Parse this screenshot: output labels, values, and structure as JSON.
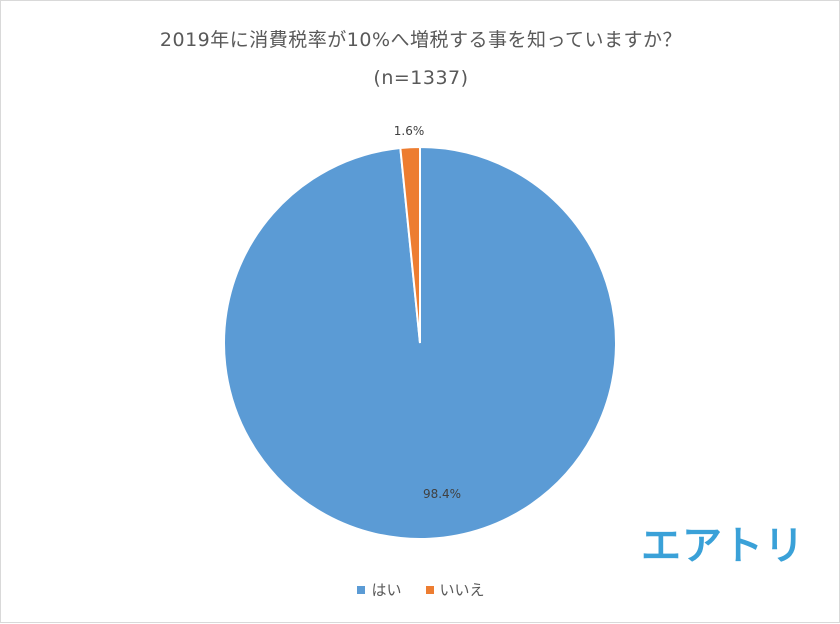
{
  "chart_data": {
    "type": "pie",
    "title": "2019年に消費税率が10%へ増税する事を知っていますか？",
    "subtitle": "(n=1337)",
    "categories": [
      "はい",
      "いいえ"
    ],
    "values": [
      98.4,
      1.6
    ],
    "data_labels": [
      "98.4%",
      "1.6%"
    ],
    "colors": [
      "#5b9bd5",
      "#ed7d31"
    ],
    "legend_position": "bottom"
  },
  "brand": {
    "logo_text": "エアトリ",
    "color": "#3aa1d8"
  }
}
